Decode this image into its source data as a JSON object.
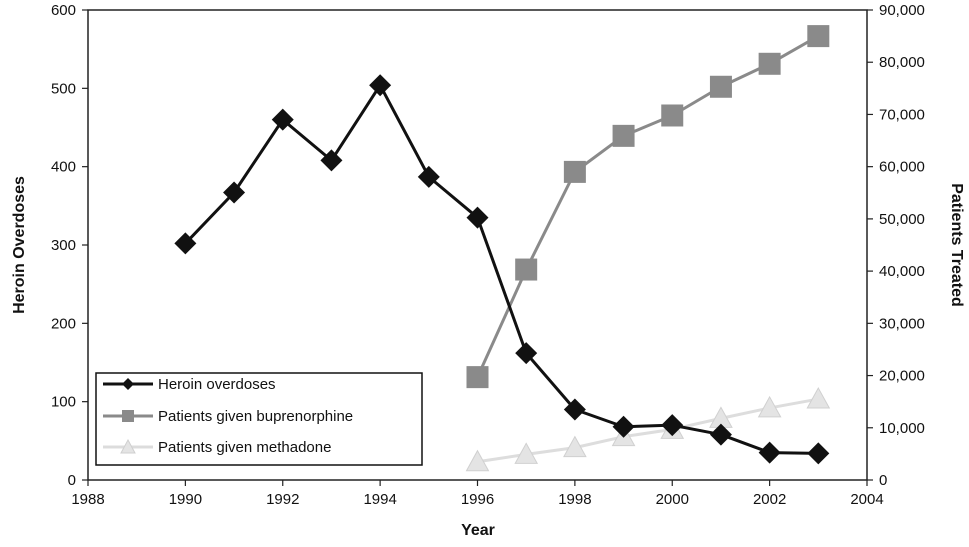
{
  "chart_data": {
    "type": "line",
    "xlabel": "Year",
    "ylabel_left": "Heroin Overdoses",
    "ylabel_right": "Patients Treated",
    "xlim": [
      1988,
      2004
    ],
    "ylim_left": [
      0,
      600
    ],
    "ylim_right": [
      0,
      90000
    ],
    "x_ticks": [
      "1988",
      "1990",
      "1992",
      "1994",
      "1996",
      "1998",
      "2000",
      "2002",
      "2004"
    ],
    "y_left_ticks": [
      "0",
      "100",
      "200",
      "300",
      "400",
      "500",
      "600"
    ],
    "y_right_ticks": [
      "0",
      "10,000",
      "20,000",
      "30,000",
      "40,000",
      "50,000",
      "60,000",
      "70,000",
      "80,000",
      "90,000"
    ],
    "grid": false,
    "legend_position": "bottom-left",
    "series": [
      {
        "name": "Heroin overdoses",
        "axis": "left",
        "marker": "diamond",
        "color": "#111111",
        "points": [
          [
            1990,
            302
          ],
          [
            1991,
            367
          ],
          [
            1992,
            460
          ],
          [
            1993,
            408
          ],
          [
            1994,
            504
          ],
          [
            1995,
            387
          ],
          [
            1996,
            335
          ],
          [
            1997,
            162
          ],
          [
            1998,
            90
          ],
          [
            1999,
            68
          ],
          [
            2000,
            70
          ],
          [
            2001,
            58
          ],
          [
            2002,
            35
          ],
          [
            2003,
            34
          ]
        ]
      },
      {
        "name": "Patients given buprenorphine",
        "axis": "right",
        "marker": "square",
        "color": "#8a8a8a",
        "points": [
          [
            1996,
            19700
          ],
          [
            1997,
            40300
          ],
          [
            1998,
            59000
          ],
          [
            1999,
            65900
          ],
          [
            2000,
            69800
          ],
          [
            2001,
            75300
          ],
          [
            2002,
            79700
          ],
          [
            2003,
            85000
          ]
        ]
      },
      {
        "name": "Patients given methadone",
        "axis": "right",
        "marker": "triangle",
        "color": "#e4e4e4",
        "points": [
          [
            1996,
            3500
          ],
          [
            1997,
            4900
          ],
          [
            1998,
            6200
          ],
          [
            1999,
            8300
          ],
          [
            2000,
            9700
          ],
          [
            2001,
            11800
          ],
          [
            2002,
            13800
          ],
          [
            2003,
            15500
          ]
        ]
      }
    ]
  }
}
